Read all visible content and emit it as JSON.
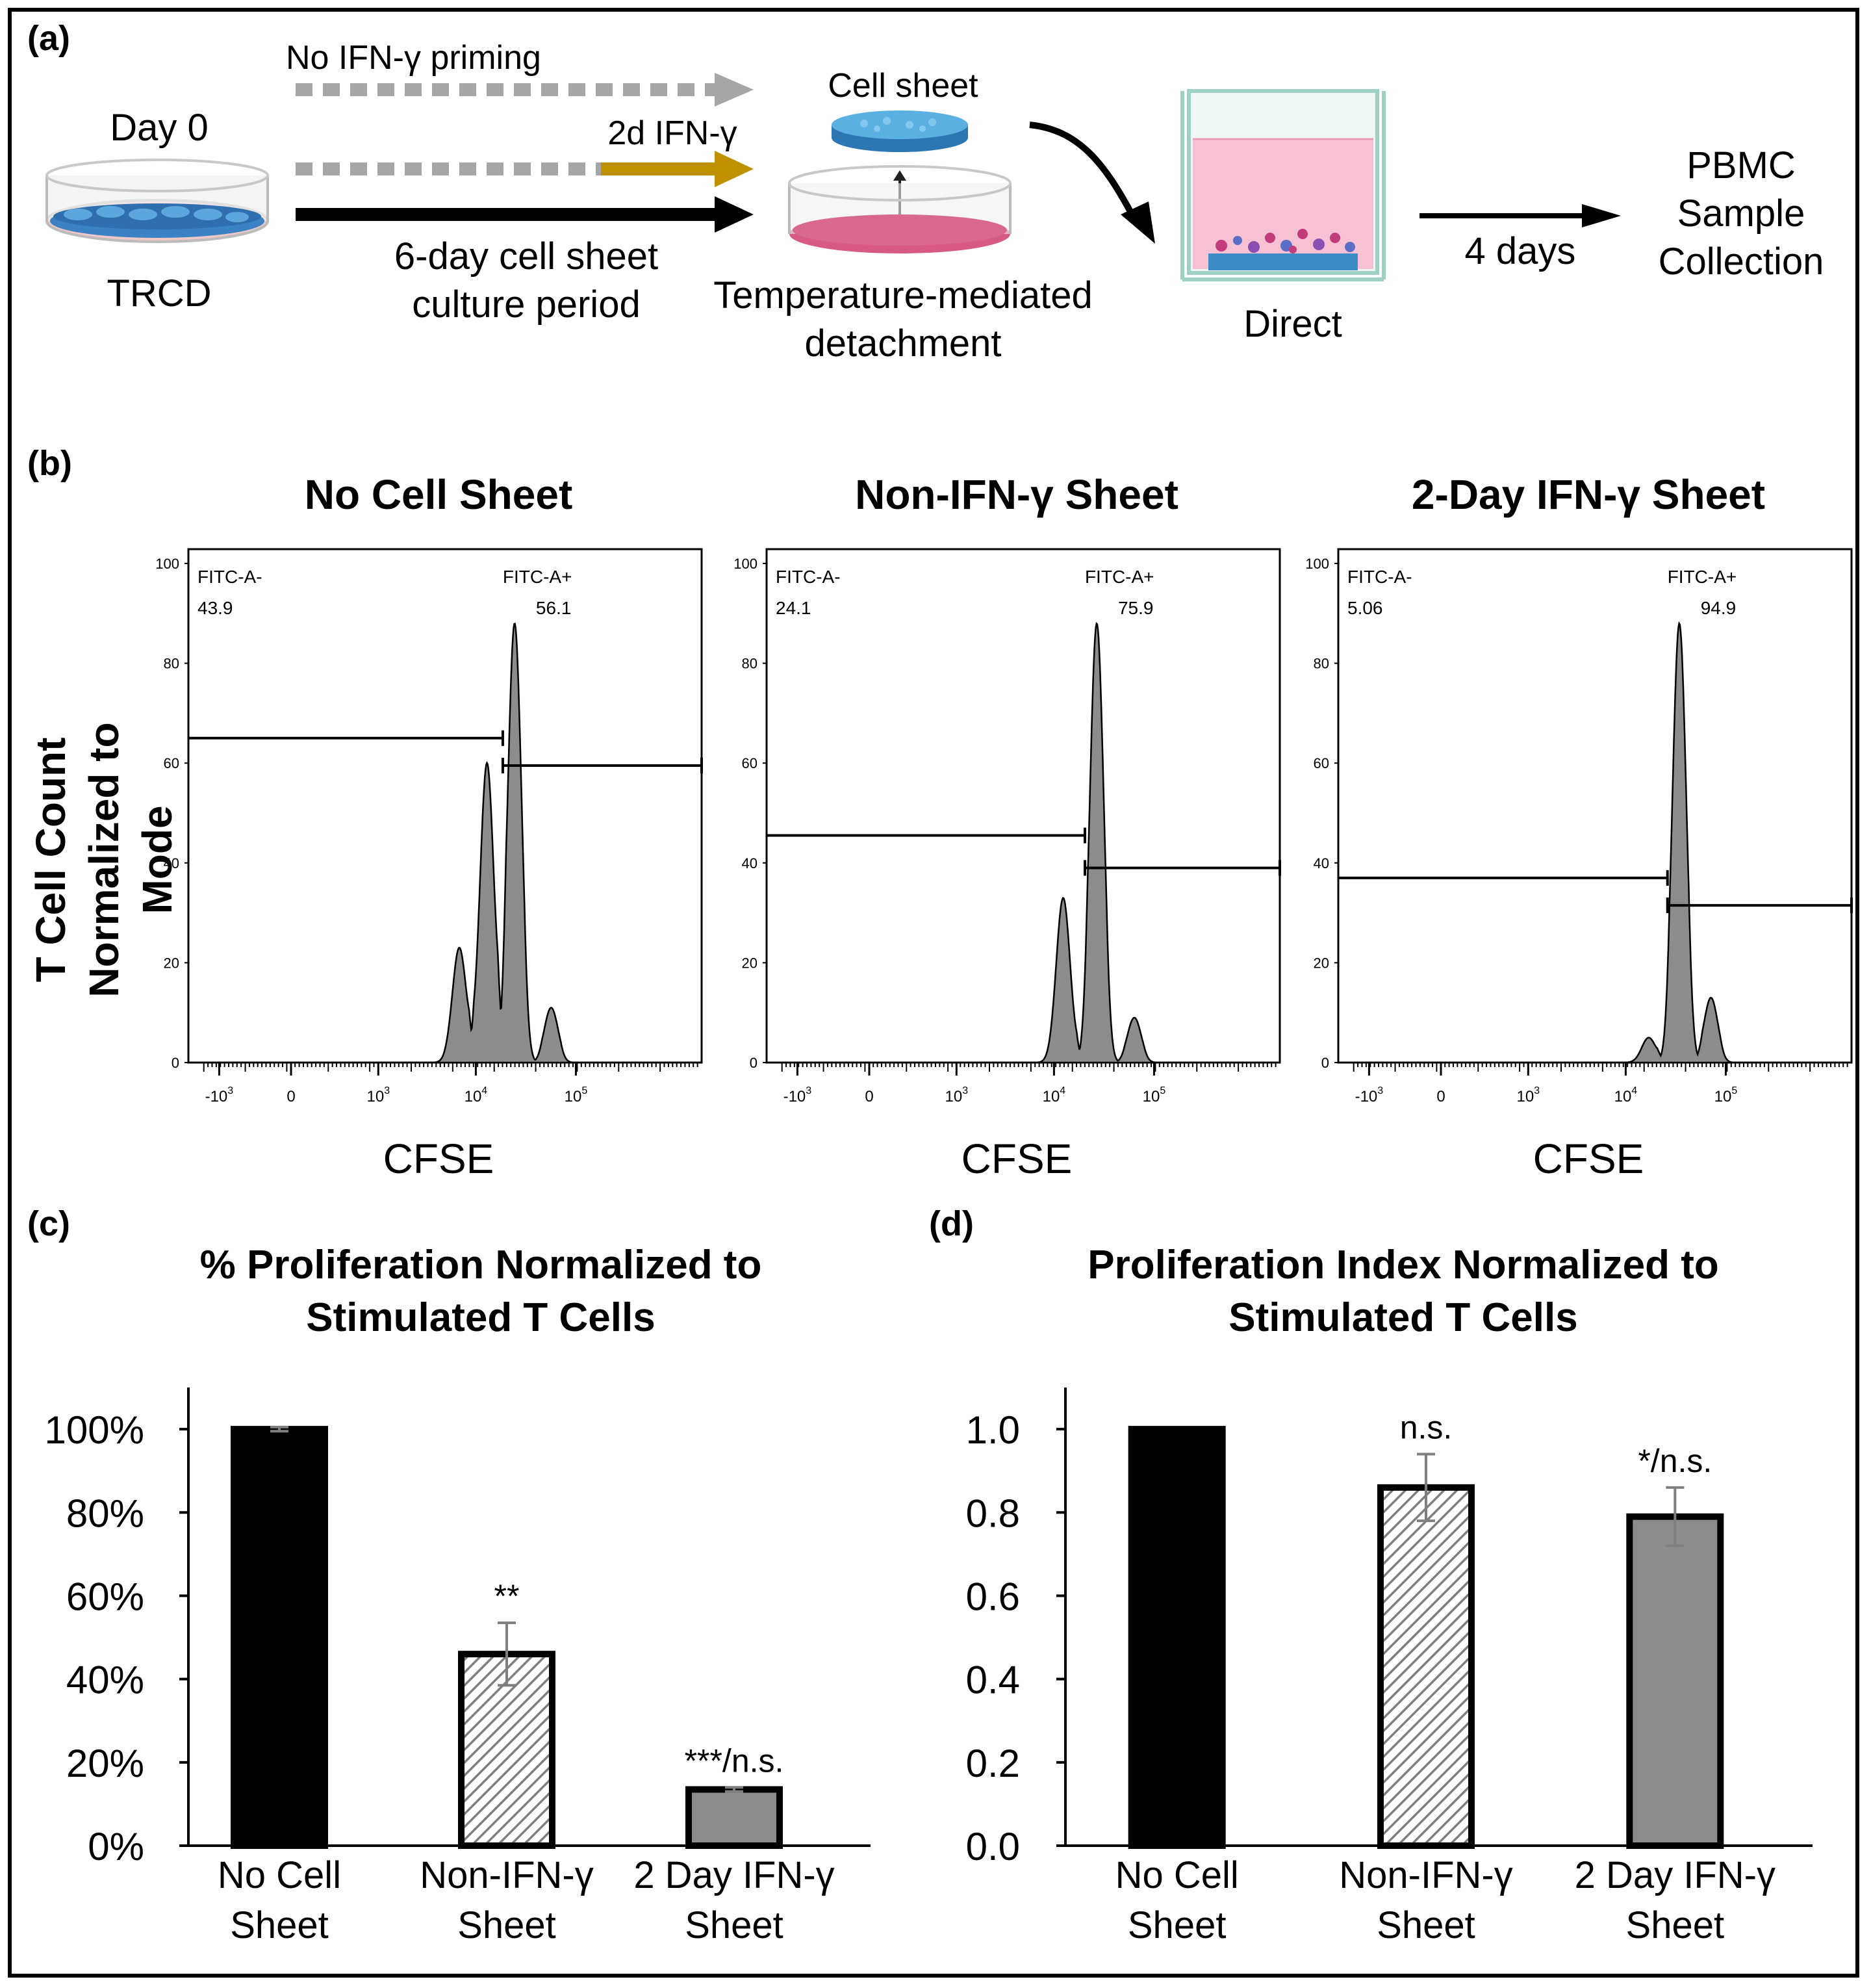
{
  "panels": {
    "a": "(a)",
    "b": "(b)",
    "c": "(c)",
    "d": "(d)"
  },
  "workflow": {
    "day0": "Day 0",
    "trcd": "TRCD",
    "no_ifn": "No IFN-γ priming",
    "ifn_2d": "2d IFN-γ",
    "culture_line1": "6-day cell sheet",
    "culture_line2": "culture period",
    "cell_sheet": "Cell sheet",
    "detach_line1": "Temperature-mediated",
    "detach_line2": "detachment",
    "direct": "Direct",
    "four_days": "4 days",
    "pbmc_line1": "PBMC",
    "pbmc_line2": "Sample",
    "pbmc_line3": "Collection",
    "colors": {
      "arrow_gray": "#a6a6a6",
      "arrow_gold": "#bf9000",
      "dish_pink": "#f3b7c9",
      "sheet_blue": "#3aa3d6"
    }
  },
  "histograms": {
    "ylabel_line1": "T Cell Count",
    "ylabel_line2": "Normalized to Mode",
    "xlabel": "CFSE",
    "y_ticks": [
      "0",
      "20",
      "40",
      "60",
      "80",
      "100"
    ],
    "x_ticks": [
      "-10",
      "0",
      "10",
      "10",
      "10"
    ],
    "x_tick_exps": [
      "3",
      "",
      "3",
      "4",
      "5"
    ],
    "fill_color": "#8c8c8c"
  },
  "chart_data": [
    {
      "type": "area",
      "title": "No Cell Sheet",
      "xlabel": "CFSE",
      "ylabel": "T Cell Count Normalized to Mode",
      "ylim": [
        0,
        100
      ],
      "x_scale": "biexponential",
      "gates": [
        {
          "name": "FITC-A-",
          "value": "43.9",
          "y": 65
        },
        {
          "name": "FITC-A+",
          "value": "56.1",
          "y": 59.5
        }
      ],
      "peaks": [
        {
          "log10_x": 3.82,
          "y": 23
        },
        {
          "log10_x": 4.1,
          "y": 60
        },
        {
          "log10_x": 4.38,
          "y": 88
        },
        {
          "log10_x": 4.75,
          "y": 11
        }
      ]
    },
    {
      "type": "area",
      "title": "Non-IFN-γ Sheet",
      "xlabel": "CFSE",
      "ylabel": "T Cell Count Normalized to Mode",
      "ylim": [
        0,
        100
      ],
      "x_scale": "biexponential",
      "gates": [
        {
          "name": "FITC-A-",
          "value": "24.1",
          "y": 45.5
        },
        {
          "name": "FITC-A+",
          "value": "75.9",
          "y": 39
        }
      ],
      "peaks": [
        {
          "log10_x": 4.08,
          "y": 33
        },
        {
          "log10_x": 4.42,
          "y": 88
        },
        {
          "log10_x": 4.8,
          "y": 9
        }
      ]
    },
    {
      "type": "area",
      "title": "2-Day IFN-γ Sheet",
      "xlabel": "CFSE",
      "ylabel": "T Cell Count Normalized to Mode",
      "ylim": [
        0,
        100
      ],
      "x_scale": "biexponential",
      "gates": [
        {
          "name": "FITC-A-",
          "value": "5.06",
          "y": 37
        },
        {
          "name": "FITC-A+",
          "value": "94.9",
          "y": 31.5
        }
      ],
      "peaks": [
        {
          "log10_x": 4.22,
          "y": 5
        },
        {
          "log10_x": 4.53,
          "y": 88
        },
        {
          "log10_x": 4.85,
          "y": 13
        }
      ]
    },
    {
      "type": "bar",
      "title": "% Proliferation Normalized to Stimulated T Cells",
      "title_line1": "% Proliferation Normalized to",
      "title_line2": "Stimulated T Cells",
      "categories": [
        "No Cell Sheet",
        "Non-IFN-γ Sheet",
        "2 Day IFN-γ Sheet"
      ],
      "category_lines": [
        [
          "No Cell",
          "Sheet"
        ],
        [
          "Non-IFN-γ",
          "Sheet"
        ],
        [
          "2 Day IFN-γ",
          "Sheet"
        ]
      ],
      "values": [
        100,
        46,
        13.5
      ],
      "errors": [
        0.5,
        7.5,
        0.5
      ],
      "significance": [
        "",
        "**",
        "***/n.s."
      ],
      "ylim": [
        0,
        110
      ],
      "y_ticks": [
        0,
        20,
        40,
        60,
        80,
        100
      ],
      "y_tick_labels": [
        "0%",
        "20%",
        "40%",
        "60%",
        "80%",
        "100%"
      ],
      "fills": [
        "#000000",
        "hatch",
        "#8c8c8c"
      ]
    },
    {
      "type": "bar",
      "title": "Proliferation Index Normalized to Stimulated T Cells",
      "title_line1": "Proliferation Index Normalized to",
      "title_line2": "Stimulated T Cells",
      "categories": [
        "No Cell Sheet",
        "Non-IFN-γ Sheet",
        "2 Day IFN-γ Sheet"
      ],
      "category_lines": [
        [
          "No Cell",
          "Sheet"
        ],
        [
          "Non-IFN-γ",
          "Sheet"
        ],
        [
          "2 Day IFN-γ",
          "Sheet"
        ]
      ],
      "values": [
        1.0,
        0.86,
        0.79
      ],
      "errors": [
        0.0,
        0.08,
        0.07
      ],
      "significance": [
        "",
        "n.s.",
        "*/n.s."
      ],
      "ylim": [
        0,
        1.1
      ],
      "y_ticks": [
        0,
        0.2,
        0.4,
        0.6,
        0.8,
        1.0
      ],
      "y_tick_labels": [
        "0.0",
        "0.2",
        "0.4",
        "0.6",
        "0.8",
        "1.0"
      ],
      "fills": [
        "#000000",
        "hatch",
        "#8c8c8c"
      ]
    }
  ]
}
